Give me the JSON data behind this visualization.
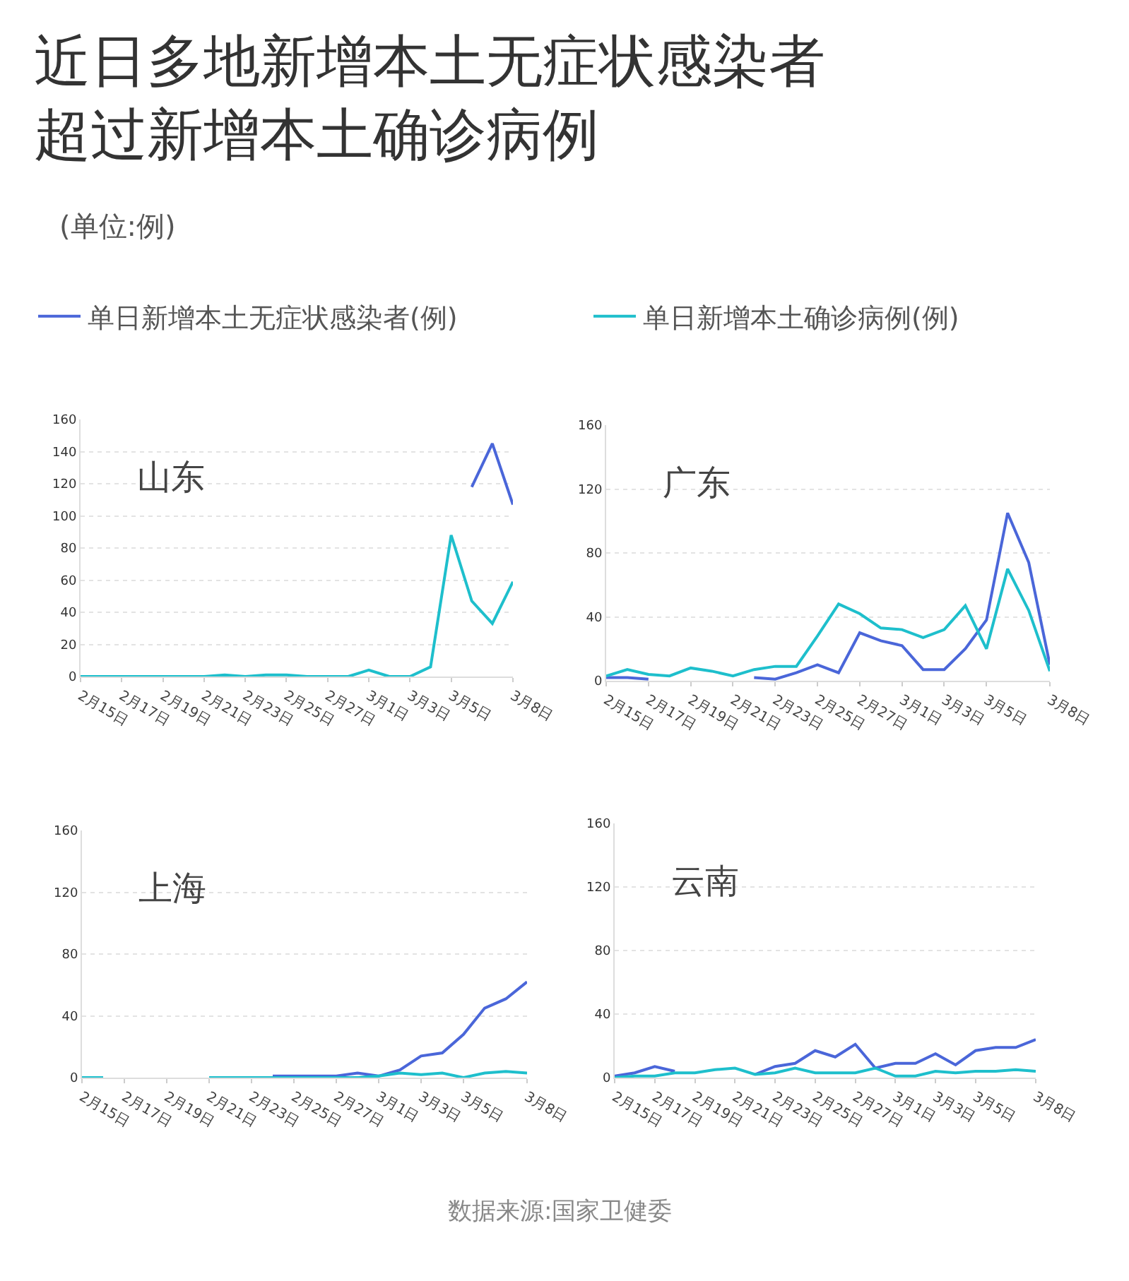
{
  "chart_data": [
    {
      "type": "other",
      "title": "近日多地新增本土无症状感染者超过新增本土确诊病例",
      "subtitle": "(单位:例)",
      "annotations": [
        "数据来源:国家卫健委"
      ]
    },
    {
      "type": "line",
      "title": "山东",
      "categories": [
        "2月15日",
        null,
        "2月17日",
        null,
        "2月19日",
        null,
        "2月21日",
        null,
        "2月23日",
        null,
        "2月25日",
        null,
        "2月27日",
        null,
        "3月1日",
        null,
        "3月3日",
        null,
        "3月5日",
        null,
        null,
        "3月8日"
      ],
      "series": [
        {
          "name": "单日新增本土无症状感染者(例)",
          "color": "#4a66d9",
          "values": [
            null,
            null,
            null,
            null,
            null,
            null,
            null,
            null,
            null,
            null,
            null,
            null,
            null,
            null,
            null,
            null,
            null,
            null,
            null,
            118,
            145,
            107
          ]
        },
        {
          "name": "单日新增本土确诊病例(例)",
          "color": "#1ebfcc",
          "values": [
            0,
            0,
            0,
            0,
            0,
            0,
            0,
            1,
            0,
            1,
            1,
            0,
            0,
            0,
            4,
            0,
            0,
            6,
            88,
            47,
            33,
            59
          ]
        }
      ],
      "ylim": [
        0,
        160
      ],
      "yticks": [
        0,
        20,
        40,
        60,
        80,
        100,
        120,
        140,
        160
      ],
      "grid": "y",
      "legend": "top"
    },
    {
      "type": "line",
      "title": "广东",
      "categories": [
        "2月15日",
        null,
        "2月17日",
        null,
        "2月19日",
        null,
        "2月21日",
        null,
        "2月23日",
        null,
        "2月25日",
        null,
        "2月27日",
        null,
        "3月1日",
        null,
        "3月3日",
        null,
        "3月5日",
        null,
        null,
        "3月8日"
      ],
      "series": [
        {
          "name": "单日新增本土无症状感染者(例)",
          "color": "#4a66d9",
          "values": [
            2,
            2,
            1,
            null,
            null,
            null,
            null,
            2,
            1,
            5,
            10,
            5,
            30,
            25,
            22,
            7,
            7,
            20,
            38,
            105,
            74,
            10
          ]
        },
        {
          "name": "单日新增本土确诊病例(例)",
          "color": "#1ebfcc",
          "values": [
            3,
            7,
            4,
            3,
            8,
            6,
            3,
            7,
            9,
            9,
            28,
            48,
            42,
            33,
            32,
            27,
            32,
            47,
            20,
            70,
            44,
            6
          ]
        }
      ],
      "ylim": [
        0,
        160
      ],
      "yticks": [
        0,
        40,
        80,
        120,
        160
      ],
      "grid": "y"
    },
    {
      "type": "line",
      "title": "上海",
      "categories": [
        "2月15日",
        null,
        "2月17日",
        null,
        "2月19日",
        null,
        "2月21日",
        null,
        "2月23日",
        null,
        "2月25日",
        null,
        "2月27日",
        null,
        "3月1日",
        null,
        "3月3日",
        null,
        "3月5日",
        null,
        null,
        "3月8日"
      ],
      "series": [
        {
          "name": "单日新增本土无症状感染者(例)",
          "color": "#4a66d9",
          "values": [
            null,
            null,
            null,
            null,
            null,
            null,
            null,
            null,
            null,
            1,
            1,
            1,
            1,
            3,
            1,
            5,
            14,
            16,
            28,
            45,
            51,
            62
          ]
        },
        {
          "name": "单日新增本土确诊病例(例)",
          "color": "#1ebfcc",
          "values": [
            0,
            0,
            null,
            null,
            null,
            null,
            0,
            0,
            0,
            0,
            0,
            0,
            0,
            0,
            1,
            3,
            2,
            3,
            0,
            3,
            4,
            3
          ]
        }
      ],
      "ylim": [
        0,
        160
      ],
      "yticks": [
        0,
        40,
        80,
        120,
        160
      ],
      "grid": "y"
    },
    {
      "type": "line",
      "title": "云南",
      "categories": [
        "2月15日",
        null,
        "2月17日",
        null,
        "2月19日",
        null,
        "2月21日",
        null,
        "2月23日",
        null,
        "2月25日",
        null,
        "2月27日",
        null,
        "3月1日",
        null,
        "3月3日",
        null,
        "3月5日",
        null,
        null,
        "3月8日"
      ],
      "series": [
        {
          "name": "单日新增本土无症状感染者(例)",
          "color": "#4a66d9",
          "values": [
            1,
            3,
            7,
            4,
            null,
            null,
            null,
            2,
            7,
            9,
            17,
            13,
            21,
            6,
            9,
            9,
            15,
            8,
            17,
            19,
            19,
            24
          ]
        },
        {
          "name": "单日新增本土确诊病例(例)",
          "color": "#1ebfcc",
          "values": [
            0,
            1,
            1,
            3,
            3,
            5,
            6,
            2,
            3,
            6,
            3,
            3,
            3,
            6,
            1,
            1,
            4,
            3,
            4,
            4,
            5,
            4
          ]
        }
      ],
      "ylim": [
        0,
        160
      ],
      "yticks": [
        0,
        40,
        80,
        120,
        160
      ],
      "grid": "y"
    }
  ]
}
